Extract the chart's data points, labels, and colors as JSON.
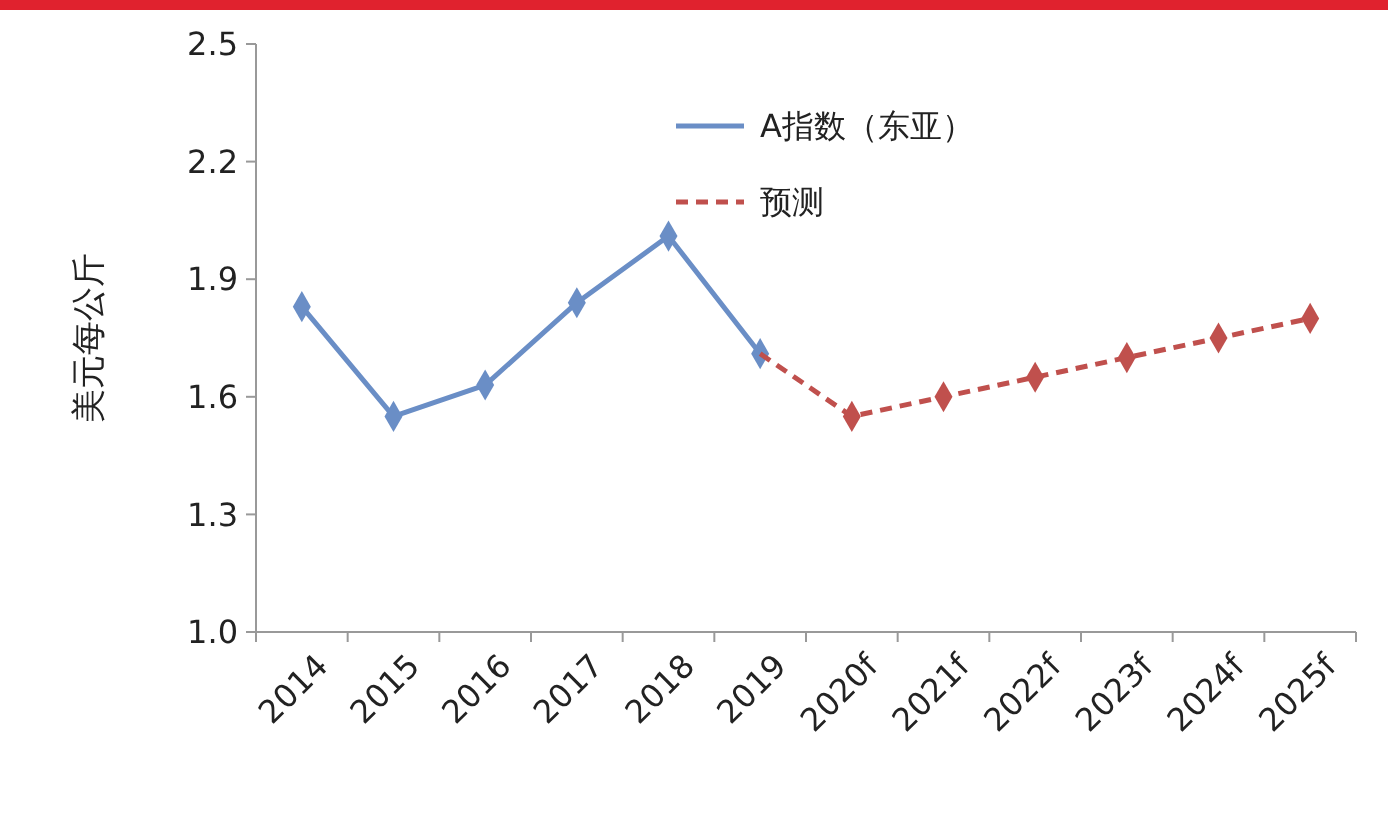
{
  "chart_data": {
    "type": "line",
    "ylabel": "美元每公斤",
    "categories": [
      "2014",
      "2015",
      "2016",
      "2017",
      "2018",
      "2019",
      "2020f",
      "2021f",
      "2022f",
      "2023f",
      "2024f",
      "2025f"
    ],
    "series": [
      {
        "name": "A指数（东亚）",
        "color": "#6a8ec6",
        "line_style": "solid",
        "values": [
          1.83,
          1.55,
          1.63,
          1.84,
          2.01,
          1.71,
          null,
          null,
          null,
          null,
          null,
          null
        ]
      },
      {
        "name": "预测",
        "color": "#c0504d",
        "line_style": "dashed",
        "values": [
          null,
          null,
          null,
          null,
          null,
          1.71,
          1.55,
          1.6,
          1.65,
          1.7,
          1.75,
          1.8
        ]
      }
    ],
    "ylim": [
      1.0,
      2.5
    ],
    "yticks": [
      {
        "value": 1.0,
        "label": "1.0"
      },
      1.3,
      1.6,
      1.9,
      2.2,
      2.5
    ],
    "marker": "diamond",
    "grid": false,
    "legend": "top right"
  }
}
